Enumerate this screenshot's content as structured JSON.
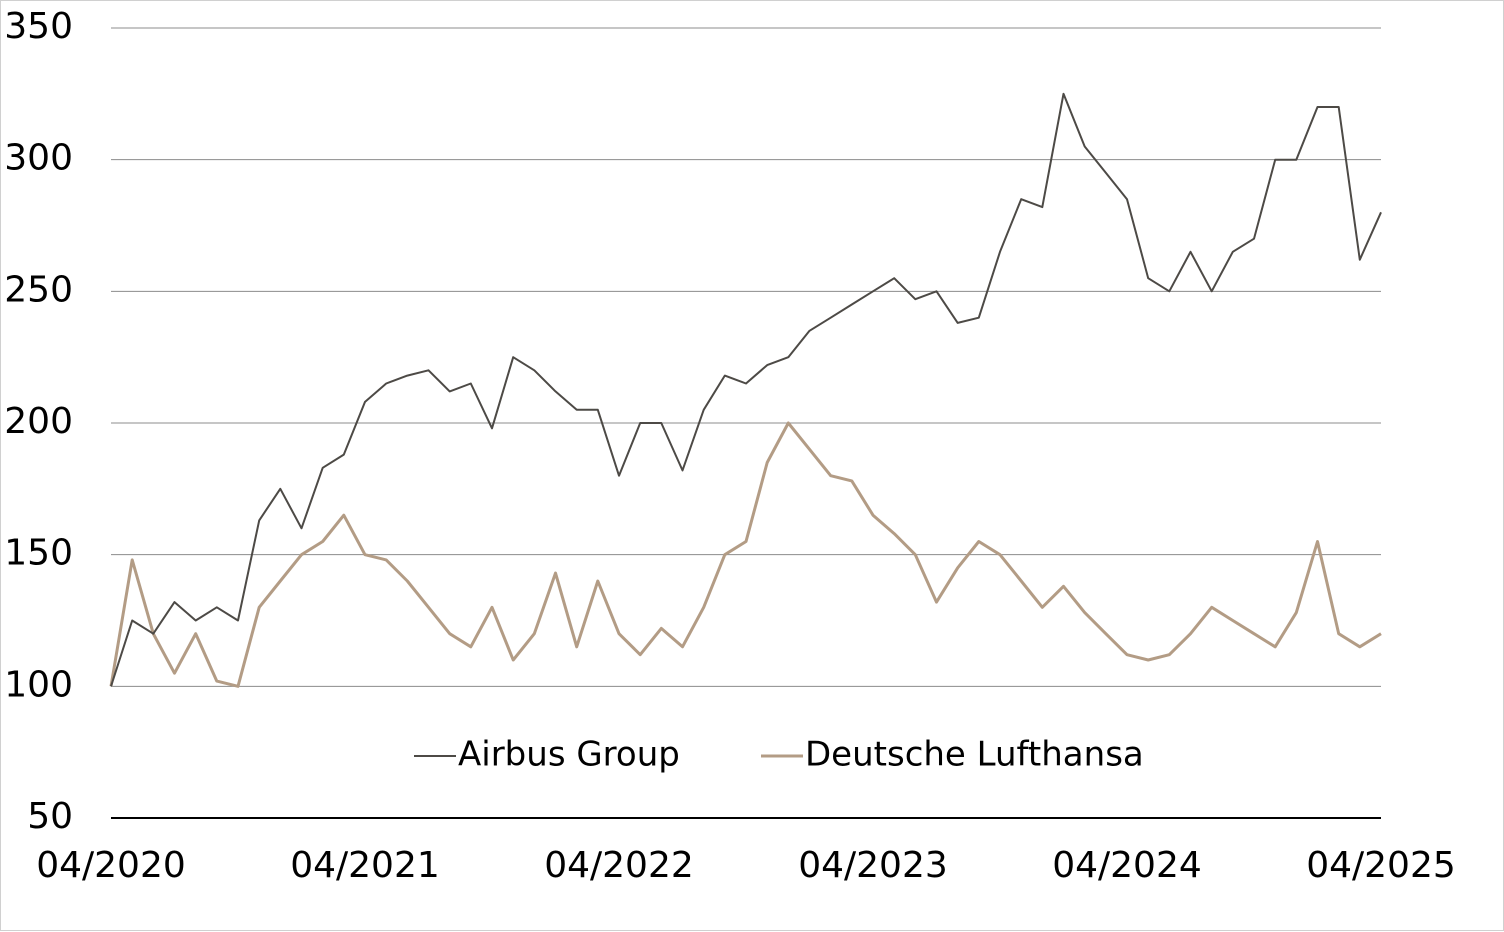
{
  "chart_data": {
    "type": "line",
    "title": "",
    "xlabel": "",
    "ylabel": "",
    "ylim": [
      50,
      350
    ],
    "yticks": [
      50,
      100,
      150,
      200,
      250,
      300,
      350
    ],
    "ytick_labels": [
      "50",
      "100",
      "150",
      "200",
      "250",
      "300",
      "350"
    ],
    "xlim": [
      "2020-04",
      "2025-04"
    ],
    "xtick_labels": [
      "04/2020",
      "04/2021",
      "04/2022",
      "04/2023",
      "04/2024",
      "04/2025"
    ],
    "grid": "horizontal",
    "legend_position": "bottom-center",
    "series": [
      {
        "name": "Airbus Group",
        "color": "#4d4a46",
        "x": [
          "2020-04",
          "2020-05",
          "2020-06",
          "2020-07",
          "2020-08",
          "2020-09",
          "2020-10",
          "2020-11",
          "2020-12",
          "2021-01",
          "2021-02",
          "2021-03",
          "2021-04",
          "2021-05",
          "2021-06",
          "2021-07",
          "2021-08",
          "2021-09",
          "2021-10",
          "2021-11",
          "2021-12",
          "2022-01",
          "2022-02",
          "2022-03",
          "2022-04",
          "2022-05",
          "2022-06",
          "2022-07",
          "2022-08",
          "2022-09",
          "2022-10",
          "2022-11",
          "2022-12",
          "2023-01",
          "2023-02",
          "2023-03",
          "2023-04",
          "2023-05",
          "2023-06",
          "2023-07",
          "2023-08",
          "2023-09",
          "2023-10",
          "2023-11",
          "2023-12",
          "2024-01",
          "2024-02",
          "2024-03",
          "2024-04",
          "2024-05",
          "2024-06",
          "2024-07",
          "2024-08",
          "2024-09",
          "2024-10",
          "2024-11",
          "2024-12",
          "2025-01",
          "2025-02",
          "2025-03",
          "2025-04"
        ],
        "values": [
          100,
          125,
          120,
          132,
          125,
          130,
          125,
          163,
          175,
          160,
          183,
          188,
          208,
          215,
          218,
          220,
          212,
          215,
          198,
          225,
          220,
          212,
          205,
          205,
          180,
          200,
          200,
          182,
          205,
          218,
          215,
          222,
          225,
          235,
          240,
          245,
          250,
          255,
          247,
          250,
          238,
          240,
          265,
          285,
          282,
          325,
          305,
          295,
          285,
          255,
          250,
          265,
          250,
          265,
          270,
          300,
          300,
          320,
          320,
          262,
          280
        ]
      },
      {
        "name": "Deutsche Lufthansa",
        "color": "#b39c85",
        "x": [
          "2020-04",
          "2020-05",
          "2020-06",
          "2020-07",
          "2020-08",
          "2020-09",
          "2020-10",
          "2020-11",
          "2020-12",
          "2021-01",
          "2021-02",
          "2021-03",
          "2021-04",
          "2021-05",
          "2021-06",
          "2021-07",
          "2021-08",
          "2021-09",
          "2021-10",
          "2021-11",
          "2021-12",
          "2022-01",
          "2022-02",
          "2022-03",
          "2022-04",
          "2022-05",
          "2022-06",
          "2022-07",
          "2022-08",
          "2022-09",
          "2022-10",
          "2022-11",
          "2022-12",
          "2023-01",
          "2023-02",
          "2023-03",
          "2023-04",
          "2023-05",
          "2023-06",
          "2023-07",
          "2023-08",
          "2023-09",
          "2023-10",
          "2023-11",
          "2023-12",
          "2024-01",
          "2024-02",
          "2024-03",
          "2024-04",
          "2024-05",
          "2024-06",
          "2024-07",
          "2024-08",
          "2024-09",
          "2024-10",
          "2024-11",
          "2024-12",
          "2025-01",
          "2025-02",
          "2025-03",
          "2025-04"
        ],
        "values": [
          100,
          148,
          120,
          105,
          120,
          102,
          100,
          130,
          140,
          150,
          155,
          165,
          150,
          148,
          140,
          130,
          120,
          115,
          130,
          110,
          120,
          143,
          115,
          140,
          120,
          112,
          122,
          115,
          130,
          150,
          155,
          185,
          200,
          190,
          180,
          178,
          165,
          158,
          150,
          132,
          145,
          155,
          150,
          140,
          130,
          138,
          128,
          120,
          112,
          110,
          112,
          120,
          130,
          125,
          120,
          115,
          128,
          155,
          120,
          115,
          120
        ]
      }
    ]
  }
}
